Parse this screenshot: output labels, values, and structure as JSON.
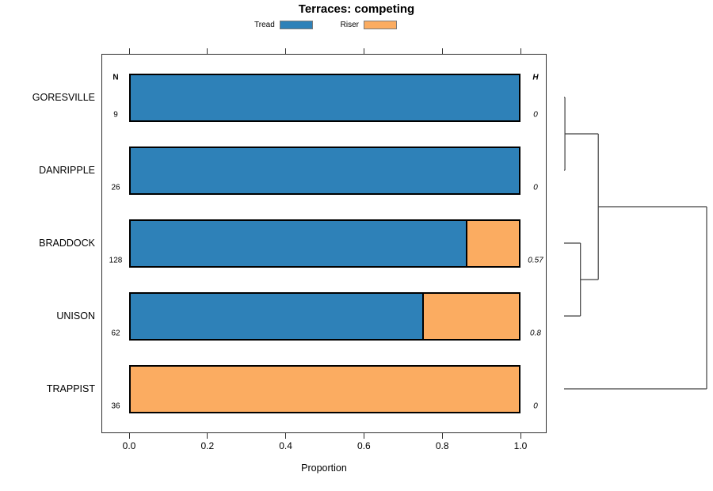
{
  "chart_data": {
    "type": "bar",
    "orientation": "horizontal",
    "stacked": true,
    "title": "Terraces: competing",
    "xlabel": "Proportion",
    "xlim": [
      0,
      1
    ],
    "xticks": [
      0.0,
      0.2,
      0.4,
      0.6,
      0.8,
      1.0
    ],
    "grid": false,
    "legend_position": "top",
    "categories": [
      "GORESVILLE",
      "DANRIPPLE",
      "BRADDOCK",
      "UNISON",
      "TRAPPIST"
    ],
    "series": [
      {
        "name": "Tread",
        "color": "#2E81B8",
        "values": [
          1.0,
          1.0,
          0.866,
          0.755,
          0.0
        ]
      },
      {
        "name": "Riser",
        "color": "#FBAC61",
        "values": [
          0.0,
          0.0,
          0.134,
          0.245,
          1.0
        ]
      }
    ],
    "columns": {
      "n": {
        "header": "N",
        "values": [
          "9",
          "26",
          "128",
          "62",
          "36"
        ]
      },
      "h": {
        "header": "H",
        "values": [
          "0",
          "0",
          "0.57",
          "0.8",
          "0"
        ]
      }
    },
    "dendrogram": {
      "note": "right-side cluster tree; h is merge height relative to max merge",
      "merges": [
        {
          "a": "L0",
          "b": "L1",
          "h": 0.006
        },
        {
          "a": "L2",
          "b": "L3",
          "h": 0.115
        },
        {
          "a": "M0",
          "b": "M1",
          "h": 0.24
        },
        {
          "a": "M2",
          "b": "L4",
          "h": 1.0
        }
      ]
    },
    "colors": {
      "bar_border": "#000000",
      "plot_border": "#2f2f2f",
      "dendrogram_line": "#404040",
      "legend_swatch_border": "#7a7a7a"
    }
  }
}
